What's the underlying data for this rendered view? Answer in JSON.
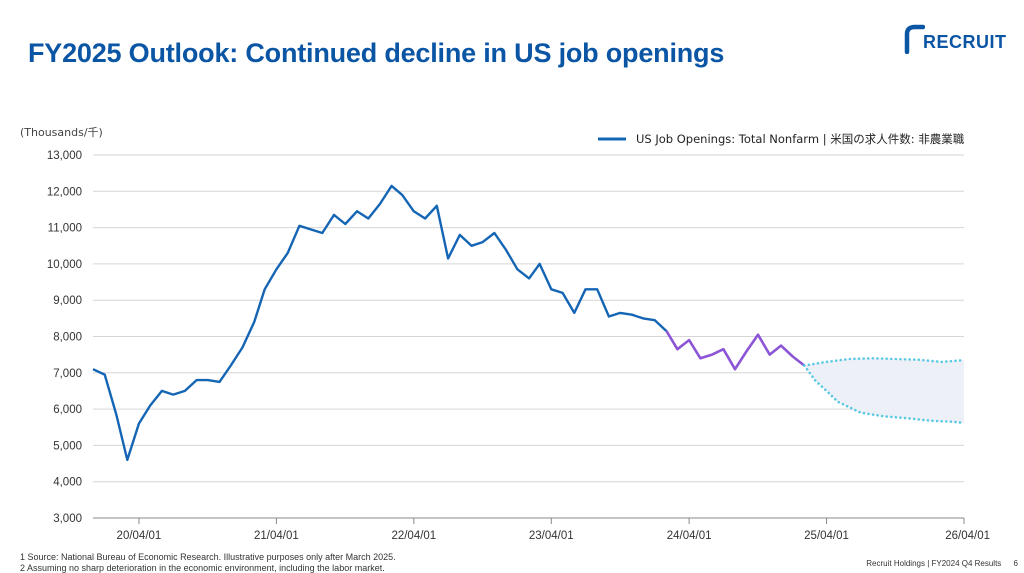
{
  "page": {
    "title": "FY2025 Outlook: Continued decline in US job openings",
    "logo_text": "RECRUIT",
    "footnotes": [
      "1 Source: National Bureau of Economic Research. Illustrative purposes only after March 2025.",
      "2 Assuming no sharp deterioration in the economic environment, including the labor market."
    ],
    "footer": "Recruit Holdings | FY2024 Q4  Results",
    "page_number": "6"
  },
  "colors": {
    "brand": "#0b55a5",
    "series_actual": "#1565b5",
    "series_recent": "#8b55d6",
    "forecast": "#5ac9e3",
    "forecast_band": "#eef0f8",
    "grid": "#d6d6d6"
  },
  "chart_data": {
    "type": "line",
    "title": "",
    "xlabel": "",
    "ylabel": "(Thousands/千)",
    "ylim": [
      3000,
      13000
    ],
    "yticks": [
      3000,
      4000,
      5000,
      6000,
      7000,
      8000,
      9000,
      10000,
      11000,
      12000,
      13000
    ],
    "ytick_labels": [
      "3,000",
      "4,000",
      "5,000",
      "6,000",
      "7,000",
      "8,000",
      "9,000",
      "10,000",
      "11,000",
      "12,000",
      "13,000"
    ],
    "xlim": [
      "2019-12-01",
      "2026-04-01"
    ],
    "xticks": [
      "2020-04-01",
      "2021-04-01",
      "2022-04-01",
      "2023-04-01",
      "2024-04-01",
      "2025-04-01",
      "2026-04-01"
    ],
    "xtick_labels": [
      "20/04/01",
      "21/04/01",
      "22/04/01",
      "23/04/01",
      "24/04/01",
      "25/04/01",
      "26/04/01"
    ],
    "grid": true,
    "legend_position": "top-right",
    "series": [
      {
        "name": "US Job Openings: Total Nonfarm | 米国の求人件数: 非農業職",
        "style": "actual",
        "points": [
          [
            "2019-12-01",
            7100
          ],
          [
            "2020-01-01",
            6950
          ],
          [
            "2020-02-01",
            5850
          ],
          [
            "2020-03-01",
            4600
          ],
          [
            "2020-04-01",
            5600
          ],
          [
            "2020-05-01",
            6100
          ],
          [
            "2020-06-01",
            6500
          ],
          [
            "2020-07-01",
            6400
          ],
          [
            "2020-08-01",
            6500
          ],
          [
            "2020-09-01",
            6800
          ],
          [
            "2020-10-01",
            6800
          ],
          [
            "2020-11-01",
            6750
          ],
          [
            "2020-12-01",
            7200
          ],
          [
            "2021-01-01",
            7700
          ],
          [
            "2021-02-01",
            8400
          ],
          [
            "2021-03-01",
            9300
          ],
          [
            "2021-04-01",
            9850
          ],
          [
            "2021-05-01",
            10300
          ],
          [
            "2021-06-01",
            11050
          ],
          [
            "2021-07-01",
            10950
          ],
          [
            "2021-08-01",
            10850
          ],
          [
            "2021-09-01",
            11350
          ],
          [
            "2021-10-01",
            11100
          ],
          [
            "2021-11-01",
            11450
          ],
          [
            "2021-12-01",
            11250
          ],
          [
            "2022-01-01",
            11650
          ],
          [
            "2022-02-01",
            12150
          ],
          [
            "2022-03-01",
            11900
          ],
          [
            "2022-04-01",
            11450
          ],
          [
            "2022-05-01",
            11250
          ],
          [
            "2022-06-01",
            11600
          ],
          [
            "2022-07-01",
            10150
          ],
          [
            "2022-08-01",
            10800
          ],
          [
            "2022-09-01",
            10500
          ],
          [
            "2022-10-01",
            10600
          ],
          [
            "2022-11-01",
            10850
          ],
          [
            "2022-12-01",
            10400
          ],
          [
            "2023-01-01",
            9850
          ],
          [
            "2023-02-01",
            9600
          ],
          [
            "2023-03-01",
            10000
          ],
          [
            "2023-04-01",
            9300
          ],
          [
            "2023-05-01",
            9200
          ],
          [
            "2023-06-01",
            8650
          ],
          [
            "2023-07-01",
            9300
          ],
          [
            "2023-08-01",
            9300
          ],
          [
            "2023-09-01",
            8550
          ],
          [
            "2023-10-01",
            8650
          ],
          [
            "2023-11-01",
            8600
          ],
          [
            "2023-12-01",
            8500
          ],
          [
            "2024-01-01",
            8450
          ],
          [
            "2024-02-01",
            8150
          ]
        ]
      },
      {
        "style": "recent",
        "points": [
          [
            "2024-02-01",
            8150
          ],
          [
            "2024-03-01",
            7650
          ],
          [
            "2024-04-01",
            7900
          ],
          [
            "2024-05-01",
            7400
          ],
          [
            "2024-06-01",
            7500
          ],
          [
            "2024-07-01",
            7650
          ],
          [
            "2024-08-01",
            7100
          ],
          [
            "2024-09-01",
            7600
          ],
          [
            "2024-10-01",
            8050
          ],
          [
            "2024-11-01",
            7500
          ],
          [
            "2024-12-01",
            7750
          ],
          [
            "2025-01-01",
            7450
          ],
          [
            "2025-02-01",
            7200
          ]
        ]
      },
      {
        "style": "forecast-upper",
        "points": [
          [
            "2025-02-01",
            7200
          ],
          [
            "2025-04-01",
            7300
          ],
          [
            "2025-06-01",
            7380
          ],
          [
            "2025-08-01",
            7400
          ],
          [
            "2025-10-01",
            7380
          ],
          [
            "2025-12-01",
            7360
          ],
          [
            "2026-02-01",
            7300
          ],
          [
            "2026-04-01",
            7350
          ]
        ]
      },
      {
        "style": "forecast-lower",
        "points": [
          [
            "2025-02-01",
            7200
          ],
          [
            "2025-03-01",
            6800
          ],
          [
            "2025-04-01",
            6500
          ],
          [
            "2025-05-01",
            6200
          ],
          [
            "2025-07-01",
            5900
          ],
          [
            "2025-09-01",
            5800
          ],
          [
            "2025-11-01",
            5750
          ],
          [
            "2026-01-01",
            5680
          ],
          [
            "2026-03-01",
            5650
          ],
          [
            "2026-04-01",
            5620
          ]
        ]
      }
    ]
  }
}
